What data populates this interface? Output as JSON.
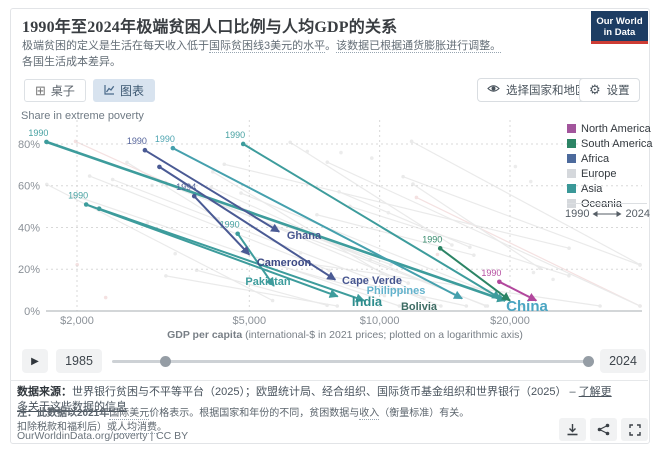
{
  "header": {
    "title": "1990年至2024年极端贫困人口比例与人均GDP的关系",
    "subtitle": {
      "p1": "极端贫困的定义是生活在每天收入低于",
      "link1": "国际贫困线3美元的水平",
      "p2": "。",
      "link2": "该数据已根据通货膨胀进行调整。",
      "line2": "各国生活成本差异。"
    },
    "logo": {
      "line1": "Our World",
      "line2": "in Data"
    }
  },
  "toolbar": {
    "tabs": [
      {
        "label": "桌子"
      },
      {
        "label": "图表"
      }
    ],
    "select_button": "选择国家和地区",
    "settings_button": "设置"
  },
  "icons": {
    "play": "▶",
    "table": "⊞",
    "gear": "⚙"
  },
  "chart_data": {
    "type": "connected-scatter",
    "title": "Share in extreme poverty",
    "xlabel_bold": "GDP per capita",
    "xlabel_rest": " (international-$ in 2021 prices; plotted on a logarithmic axis)",
    "x_scale": "log",
    "grid": true,
    "x_ticks": [
      {
        "value": 2000,
        "label": "$2,000"
      },
      {
        "value": 5000,
        "label": "$5,000"
      },
      {
        "value": 10000,
        "label": "$10,000"
      },
      {
        "value": 20000,
        "label": "$20,000"
      }
    ],
    "y_ticks": [
      {
        "value": 0,
        "label": "0%"
      },
      {
        "value": 20,
        "label": "20%"
      },
      {
        "value": 40,
        "label": "40%"
      },
      {
        "value": 60,
        "label": "60%"
      },
      {
        "value": 80,
        "label": "80%"
      }
    ],
    "ylim": [
      0,
      88
    ],
    "legend_position": "right",
    "legend": [
      {
        "label": "North America",
        "color": "#a2559c"
      },
      {
        "label": "South America",
        "color": "#2c8465"
      },
      {
        "label": "Africa",
        "color": "#4c6a9c"
      },
      {
        "label": "Europe",
        "color": "#d5d8dc"
      },
      {
        "label": "Asia",
        "color": "#3a9898"
      },
      {
        "label": "Oceania",
        "color": "#d5d8dc"
      }
    ],
    "period": {
      "start": "1990",
      "end": "2024"
    },
    "series": [
      {
        "name": "China",
        "continent": "Asia",
        "color": "#3d9c9c",
        "label_color": "#4aa5c2",
        "start_label": "1990",
        "points": [
          {
            "year": 1990,
            "gdp": 1700,
            "poverty": 81
          },
          {
            "year": 2024,
            "gdp": 19500,
            "poverty": 5
          }
        ]
      },
      {
        "name": "Philippines",
        "continent": "Asia",
        "color": "#45a0ad",
        "label_color": "#62b2cc",
        "start_label": "1990",
        "points": [
          {
            "year": 1990,
            "gdp": 3330,
            "poverty": 78
          },
          {
            "year": 2024,
            "gdp": 15500,
            "poverty": 6
          }
        ]
      },
      {
        "name": "",
        "continent": "Asia",
        "color": "#3d9c9c",
        "label_color": "",
        "start_label": "1990",
        "points": [
          {
            "year": 1990,
            "gdp": 4840,
            "poverty": 80
          },
          {
            "year": 2024,
            "gdp": 19000,
            "poverty": 6
          }
        ]
      },
      {
        "name": "Pakistan",
        "continent": "Asia",
        "color": "#3d9c9c",
        "label_color": "#3d9c9c",
        "start_label": "1990",
        "points": [
          {
            "year": 1990,
            "gdp": 2100,
            "poverty": 51
          },
          {
            "year": 2024,
            "gdp": 8000,
            "poverty": 7
          }
        ]
      },
      {
        "name": "India",
        "continent": "Asia",
        "color": "#3d9c9c",
        "label_color": "#2e8d8d",
        "start_label": "",
        "points": [
          {
            "year": 1990,
            "gdp": 2250,
            "poverty": 49
          },
          {
            "year": 2024,
            "gdp": 9200,
            "poverty": 5
          }
        ]
      },
      {
        "name": "",
        "continent": "Asia",
        "color": "#3d9c9c",
        "label_color": "",
        "start_label": "1990",
        "points": [
          {
            "year": 1990,
            "gdp": 4700,
            "poverty": 37
          },
          {
            "year": 2024,
            "gdp": 5700,
            "poverty": 12
          }
        ]
      },
      {
        "name": "Ghana",
        "continent": "Africa",
        "color": "#4a5a94",
        "label_color": "#46558f",
        "start_label": "1990",
        "points": [
          {
            "year": 1990,
            "gdp": 2870,
            "poverty": 77
          },
          {
            "year": 2024,
            "gdp": 5860,
            "poverty": 38
          }
        ]
      },
      {
        "name": "Cape Verde",
        "continent": "Africa",
        "color": "#4a5a94",
        "label_color": "#46558f",
        "start_label": "",
        "points": [
          {
            "year": 1990,
            "gdp": 3100,
            "poverty": 69
          },
          {
            "year": 2024,
            "gdp": 7900,
            "poverty": 15
          }
        ]
      },
      {
        "name": "Cameroon",
        "continent": "Africa",
        "color": "#4a5a94",
        "label_color": "#3d4a85",
        "start_label": "1994",
        "points": [
          {
            "year": 1994,
            "gdp": 3730,
            "poverty": 55
          },
          {
            "year": 2024,
            "gdp": 5000,
            "poverty": 27
          }
        ]
      },
      {
        "name": "Bolivia",
        "continent": "South America",
        "color": "#2c8465",
        "label_color": "#3d6b63",
        "start_label": "1990",
        "points": [
          {
            "year": 1990,
            "gdp": 13800,
            "poverty": 30
          },
          {
            "year": 2024,
            "gdp": 20000,
            "poverty": 5
          }
        ]
      },
      {
        "name": "",
        "continent": "North America",
        "color": "#b2479d",
        "label_color": "",
        "start_label": "1990",
        "points": [
          {
            "year": 1990,
            "gdp": 18900,
            "poverty": 14
          },
          {
            "year": 2024,
            "gdp": 23000,
            "poverty": 5
          }
        ]
      }
    ]
  },
  "timeline": {
    "start_year": "1985",
    "end_year": "2024"
  },
  "footer": {
    "sources_label": "数据来源：",
    "sources_text": "世界银行贫困与不平等平台（2025）；欧盟统计局、经合组织、国际货币基金组织和世界银行（2025） – ",
    "sources_link": "了解更多关于这些数据的信息",
    "note_bold": "注：此数据以2021年",
    "note_u1": "国际美元",
    "note_t1": "价格表示。根据国家和年份的不同，贫困数据与",
    "note_u2": "收入",
    "note_t2": "（衡量标准）有关。",
    "note2_t1": "扣除税款和福利后）或",
    "note2_u1": "人均消费",
    "note2_t2": "。",
    "url": "OurWorldinData.org/poverty | CC BY"
  }
}
